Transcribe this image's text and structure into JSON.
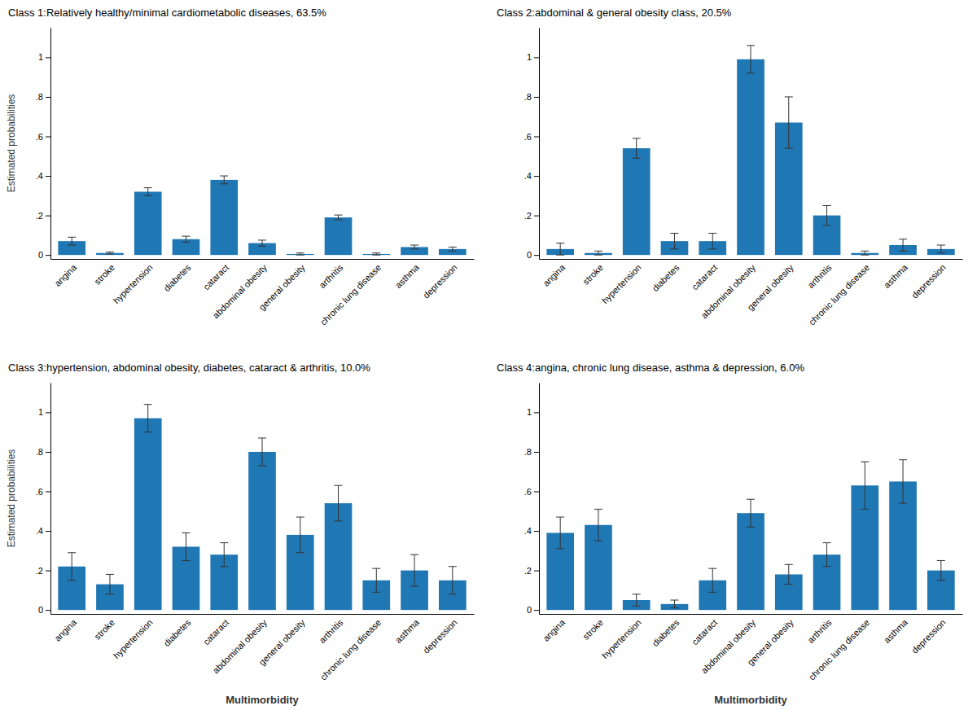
{
  "chart_data": [
    {
      "type": "bar",
      "title": "Class 1:Relatively healthy/minimal cardiometabolic diseases, 63.5%",
      "categories": [
        "angina",
        "stroke",
        "hypertension",
        "diabetes",
        "cataract",
        "abdominal obesity",
        "general obesity",
        "arthritis",
        "chronic lung disease",
        "asthma",
        "depression"
      ],
      "values": [
        0.07,
        0.01,
        0.32,
        0.08,
        0.38,
        0.06,
        0.005,
        0.19,
        0.005,
        0.04,
        0.03
      ],
      "errors": [
        0.02,
        0.005,
        0.02,
        0.015,
        0.02,
        0.015,
        0.005,
        0.012,
        0.005,
        0.01,
        0.01
      ],
      "ylabel": "Estimated probabilities",
      "ylim": [
        -0.02,
        1.15
      ],
      "yticks": [
        0,
        {
          "value": 0.2,
          "label": ".2"
        },
        {
          "value": 0.4,
          "label": ".4"
        },
        {
          "value": 0.6,
          "label": ".6"
        },
        {
          "value": 0.8,
          "label": ".8"
        },
        1
      ],
      "grid": false
    },
    {
      "type": "bar",
      "title": "Class 2:abdominal & general obesity class, 20.5%",
      "categories": [
        "angina",
        "stroke",
        "hypertension",
        "diabetes",
        "cataract",
        "abdominal obesity",
        "general obesity",
        "arthritis",
        "chronic lung disease",
        "asthma",
        "depression"
      ],
      "values": [
        0.03,
        0.01,
        0.54,
        0.07,
        0.07,
        0.99,
        0.67,
        0.2,
        0.01,
        0.05,
        0.03
      ],
      "errors": [
        0.03,
        0.01,
        0.05,
        0.04,
        0.04,
        0.07,
        0.13,
        0.05,
        0.01,
        0.03,
        0.02
      ],
      "ylim": [
        -0.02,
        1.15
      ],
      "yticks": [
        0,
        {
          "value": 0.2,
          "label": ".2"
        },
        {
          "value": 0.4,
          "label": ".4"
        },
        {
          "value": 0.6,
          "label": ".6"
        },
        {
          "value": 0.8,
          "label": ".8"
        },
        1
      ],
      "grid": false
    },
    {
      "type": "bar",
      "title": "Class 3:hypertension, abdominal obesity, diabetes, cataract & arthritis, 10.0%",
      "categories": [
        "angina",
        "stroke",
        "hypertension",
        "diabetes",
        "cataract",
        "abdominal obesity",
        "general obesity",
        "arthritis",
        "chronic lung disease",
        "asthma",
        "depression"
      ],
      "values": [
        0.22,
        0.13,
        0.97,
        0.32,
        0.28,
        0.8,
        0.38,
        0.54,
        0.15,
        0.2,
        0.15
      ],
      "errors": [
        0.07,
        0.05,
        0.07,
        0.07,
        0.06,
        0.07,
        0.09,
        0.09,
        0.06,
        0.08,
        0.07
      ],
      "ylabel": "Estimated probabilities",
      "xlabel": "Multimorbidity",
      "ylim": [
        -0.02,
        1.15
      ],
      "yticks": [
        0,
        {
          "value": 0.2,
          "label": ".2"
        },
        {
          "value": 0.4,
          "label": ".4"
        },
        {
          "value": 0.6,
          "label": ".6"
        },
        {
          "value": 0.8,
          "label": ".8"
        },
        1
      ],
      "grid": false
    },
    {
      "type": "bar",
      "title": "Class 4:angina, chronic lung disease, asthma & depression, 6.0%",
      "categories": [
        "angina",
        "stroke",
        "hypertension",
        "diabetes",
        "cataract",
        "abdominal obesity",
        "general obesity",
        "arthritis",
        "chronic lung disease",
        "asthma",
        "depression"
      ],
      "values": [
        0.39,
        0.43,
        0.05,
        0.03,
        0.15,
        0.49,
        0.18,
        0.28,
        0.63,
        0.65,
        0.2
      ],
      "errors": [
        0.08,
        0.08,
        0.03,
        0.02,
        0.06,
        0.07,
        0.05,
        0.06,
        0.12,
        0.11,
        0.05
      ],
      "xlabel": "Multimorbidity",
      "ylim": [
        -0.02,
        1.15
      ],
      "yticks": [
        0,
        {
          "value": 0.2,
          "label": ".2"
        },
        {
          "value": 0.4,
          "label": ".4"
        },
        {
          "value": 0.6,
          "label": ".6"
        },
        {
          "value": 0.8,
          "label": ".8"
        },
        1
      ],
      "grid": false
    }
  ]
}
